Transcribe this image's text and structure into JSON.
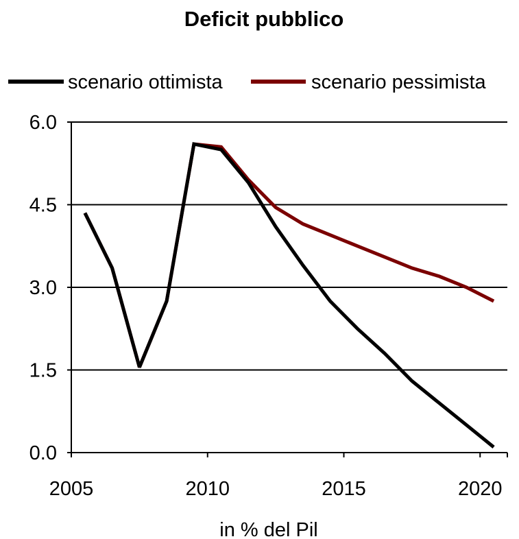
{
  "chart_data": {
    "type": "line",
    "title": "Deficit pubblico",
    "xlabel": "in % del Pil",
    "ylabel": "",
    "xlim": [
      2005,
      2021
    ],
    "ylim": [
      0,
      6
    ],
    "x_ticks": [
      "2005",
      "2010",
      "2015",
      "2020"
    ],
    "y_ticks": [
      "6.0",
      "4.5",
      "3.0",
      "1.5",
      "0.0"
    ],
    "x_tick_values": [
      2005,
      2010,
      2015,
      2020
    ],
    "y_tick_values": [
      6.0,
      4.5,
      3.0,
      1.5,
      0.0
    ],
    "grid": "horizontal",
    "legend_position": "top",
    "x": [
      2005.5,
      2006.5,
      2007.5,
      2008.5,
      2009.5,
      2010.5,
      2011.5,
      2012.5,
      2013.5,
      2014.5,
      2015.5,
      2016.5,
      2017.5,
      2018.5,
      2019.5,
      2020.5
    ],
    "series": [
      {
        "name": "scenario ottimista",
        "color": "#000000",
        "values": [
          4.35,
          3.35,
          1.55,
          2.75,
          5.6,
          5.5,
          4.9,
          4.1,
          3.4,
          2.75,
          2.25,
          1.8,
          1.3,
          0.9,
          0.5,
          0.1
        ]
      },
      {
        "name": "scenario pessimista",
        "color": "#7b0000",
        "values": [
          4.35,
          3.35,
          1.55,
          2.75,
          5.6,
          5.55,
          4.95,
          4.45,
          4.15,
          3.95,
          3.75,
          3.55,
          3.35,
          3.2,
          3.0,
          2.75
        ]
      }
    ]
  }
}
